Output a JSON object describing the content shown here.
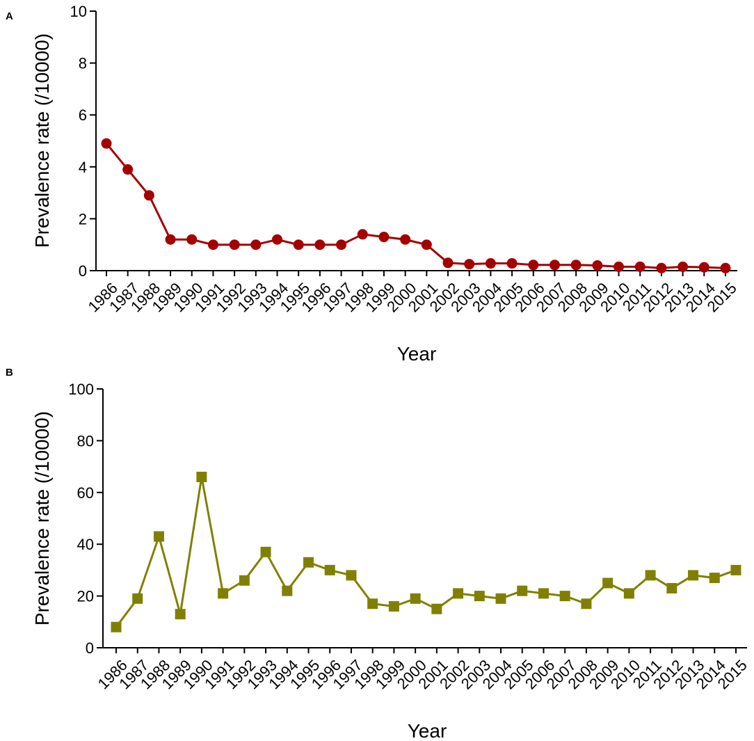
{
  "chart_data": [
    {
      "panel": "A",
      "type": "line",
      "marker": "circle",
      "color": "#a50000",
      "x": [
        "1986",
        "1987",
        "1988",
        "1989",
        "1990",
        "1991",
        "1992",
        "1993",
        "1994",
        "1995",
        "1996",
        "1997",
        "1998",
        "1999",
        "2000",
        "2001",
        "2002",
        "2003",
        "2004",
        "2005",
        "2006",
        "2007",
        "2008",
        "2009",
        "2010",
        "2011",
        "2012",
        "2013",
        "2014",
        "2015"
      ],
      "values": [
        4.9,
        3.9,
        2.9,
        1.2,
        1.2,
        1.0,
        1.0,
        1.0,
        1.2,
        1.0,
        1.0,
        1.0,
        1.4,
        1.3,
        1.2,
        1.0,
        0.3,
        0.25,
        0.28,
        0.28,
        0.22,
        0.22,
        0.22,
        0.2,
        0.15,
        0.15,
        0.1,
        0.15,
        0.13,
        0.1
      ],
      "xlabel": "Year",
      "ylabel": "Prevalence rate (/10000)",
      "ylim": [
        0,
        10
      ],
      "yticks": [
        "0",
        "2",
        "4",
        "6",
        "8",
        "10"
      ],
      "ytick_values": [
        0,
        2,
        4,
        6,
        8,
        10
      ]
    },
    {
      "panel": "B",
      "type": "line",
      "marker": "square",
      "color": "#808000",
      "x": [
        "1986",
        "1987",
        "1988",
        "1989",
        "1990",
        "1991",
        "1992",
        "1993",
        "1994",
        "1995",
        "1996",
        "1997",
        "1998",
        "1999",
        "2000",
        "2001",
        "2002",
        "2003",
        "2004",
        "2005",
        "2006",
        "2007",
        "2008",
        "2009",
        "2010",
        "2011",
        "2012",
        "2013",
        "2014",
        "2015"
      ],
      "values": [
        8,
        19,
        43,
        13,
        66,
        21,
        26,
        37,
        22,
        33,
        30,
        28,
        17,
        16,
        19,
        15,
        21,
        20,
        19,
        22,
        21,
        20,
        17,
        25,
        21,
        28,
        23,
        28,
        27,
        30
      ],
      "xlabel": "Year",
      "ylabel": "Prevalence rate (/10000)",
      "ylim": [
        0,
        100
      ],
      "yticks": [
        "0",
        "20",
        "40",
        "60",
        "80",
        "100"
      ],
      "ytick_values": [
        0,
        20,
        40,
        60,
        80,
        100
      ]
    }
  ]
}
